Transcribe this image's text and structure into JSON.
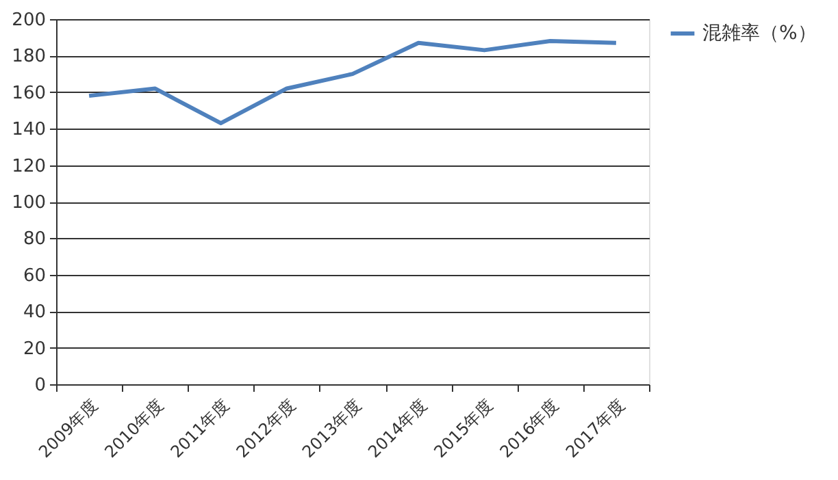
{
  "chart_data": {
    "type": "line",
    "categories": [
      "2009年度",
      "2010年度",
      "2011年度",
      "2012年度",
      "2013年度",
      "2014年度",
      "2015年度",
      "2016年度",
      "2017年度"
    ],
    "series": [
      {
        "name": "混雑率（%）",
        "color": "#4f81bd",
        "values": [
          158,
          162,
          143,
          162,
          170,
          187,
          183,
          188,
          187
        ]
      }
    ],
    "ylim": [
      0,
      200
    ],
    "yticks": [
      0,
      20,
      40,
      60,
      80,
      100,
      120,
      140,
      160,
      180,
      200
    ],
    "grid": "y",
    "legend": "right",
    "marker": "none"
  }
}
